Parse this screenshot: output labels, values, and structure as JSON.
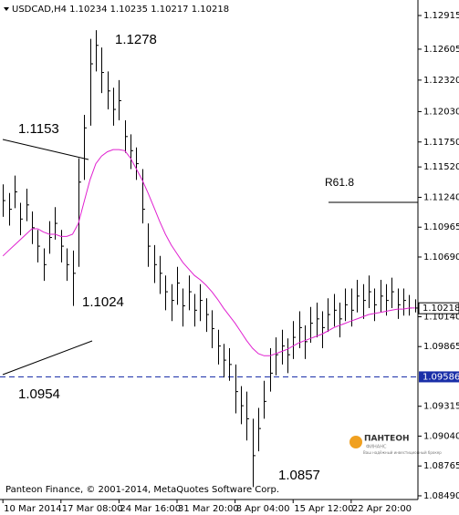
{
  "chart_data": {
    "type": "ohlc",
    "title": "USDCAD,H4  1.10234 1.10235 1.10217 1.10218",
    "series": [
      {
        "name": "USDCAD,H4",
        "color": "#000000",
        "high": [
          1.1136,
          1.1128,
          1.1144,
          1.1119,
          1.1132,
          1.1111,
          1.1094,
          1.1077,
          1.1102,
          1.1115,
          1.1094,
          1.1077,
          1.1075,
          1.116,
          1.12,
          1.127,
          1.1278,
          1.1262,
          1.124,
          1.1225,
          1.1232,
          1.1195,
          1.1182,
          1.117,
          1.115,
          1.11,
          1.108,
          1.107,
          1.1052,
          1.1044,
          1.106,
          1.104,
          1.1052,
          1.1035,
          1.1044,
          1.1031,
          1.102,
          1.1002,
          1.0989,
          1.0985,
          1.097,
          1.095,
          1.0945,
          1.092,
          1.093,
          1.0955,
          1.0985,
          1.0995,
          1.1002,
          1.0994,
          1.101,
          1.1019,
          1.1006,
          1.1023,
          1.1027,
          1.1019,
          1.1031,
          1.1035,
          1.1027,
          1.104,
          1.104,
          1.1048,
          1.1044,
          1.1052,
          1.104,
          1.1048,
          1.1044,
          1.105,
          1.104,
          1.104,
          1.1034,
          1.103
        ],
        "low": [
          1.1106,
          1.1098,
          1.1114,
          1.1089,
          1.1102,
          1.1081,
          1.1064,
          1.1047,
          1.1072,
          1.1085,
          1.1064,
          1.1047,
          1.1024,
          1.106,
          1.114,
          1.119,
          1.124,
          1.122,
          1.1205,
          1.119,
          1.1195,
          1.1165,
          1.115,
          1.114,
          1.11,
          1.106,
          1.1045,
          1.1035,
          1.102,
          1.101,
          1.1025,
          1.1005,
          1.102,
          1.1005,
          1.101,
          1.1,
          1.0985,
          1.097,
          1.0958,
          1.0955,
          1.0925,
          1.0915,
          1.09,
          1.0857,
          1.089,
          1.092,
          1.0945,
          1.096,
          1.097,
          1.0962,
          1.0975,
          1.0985,
          1.0975,
          1.099,
          1.0995,
          1.0985,
          1.1,
          1.1005,
          1.0995,
          1.101,
          1.1005,
          1.1018,
          1.1012,
          1.1022,
          1.101,
          1.1018,
          1.1015,
          1.1022,
          1.1012,
          1.1015,
          1.1015,
          1.1018
        ],
        "close": [
          1.1121,
          1.1113,
          1.1129,
          1.1104,
          1.1117,
          1.1096,
          1.1079,
          1.1062,
          1.1087,
          1.11,
          1.1079,
          1.1062,
          1.1054,
          1.1138,
          1.1188,
          1.1247,
          1.1264,
          1.1239,
          1.1222,
          1.1205,
          1.1213,
          1.118,
          1.1167,
          1.1155,
          1.1113,
          1.1079,
          1.1062,
          1.1054,
          1.1037,
          1.1029,
          1.1045,
          1.1024,
          1.1037,
          1.102,
          1.1029,
          1.1016,
          1.1003,
          1.0987,
          1.0974,
          1.097,
          1.0945,
          1.0932,
          1.092,
          1.0886,
          1.0911,
          1.0936,
          1.0962,
          1.0979,
          1.0987,
          1.0979,
          1.0995,
          1.1004,
          1.0991,
          1.1008,
          1.1012,
          1.1004,
          1.1016,
          1.102,
          1.1012,
          1.1025,
          1.102,
          1.1033,
          1.1029,
          1.1037,
          1.1025,
          1.1033,
          1.1029,
          1.1037,
          1.1025,
          1.1029,
          1.1022,
          1.1022
        ]
      }
    ],
    "ma": {
      "color": "#e020d0",
      "values": [
        1.107,
        1.1075,
        1.108,
        1.1085,
        1.109,
        1.1095,
        1.1095,
        1.1092,
        1.109,
        1.109,
        1.1088,
        1.1088,
        1.109,
        1.11,
        1.112,
        1.114,
        1.1155,
        1.1162,
        1.1166,
        1.1168,
        1.1168,
        1.1167,
        1.116,
        1.115,
        1.114,
        1.1128,
        1.1115,
        1.1102,
        1.109,
        1.108,
        1.1072,
        1.1064,
        1.1058,
        1.1052,
        1.1048,
        1.1043,
        1.1037,
        1.103,
        1.1022,
        1.1015,
        1.1008,
        1.1,
        1.0992,
        1.0985,
        1.098,
        1.0978,
        1.0978,
        1.098,
        1.0982,
        1.0984,
        1.0987,
        1.099,
        1.0992,
        1.0994,
        1.0996,
        1.0998,
        1.1001,
        1.1004,
        1.1006,
        1.1008,
        1.101,
        1.1012,
        1.1014,
        1.1016,
        1.1017,
        1.1018,
        1.1019,
        1.102,
        1.1021,
        1.1021,
        1.1022,
        1.1022
      ]
    },
    "xlim": [
      -0.5,
      71.5
    ],
    "xticks": [
      {
        "value": 0,
        "label": "10 Mar 2014"
      },
      {
        "value": 10,
        "label": "17 Mar 08:00"
      },
      {
        "value": 20,
        "label": "24 Mar 16:00"
      },
      {
        "value": 30,
        "label": "31 Mar 20:00"
      },
      {
        "value": 40,
        "label": "8 Apr 04:00"
      },
      {
        "value": 50,
        "label": "15 Apr 12:00"
      },
      {
        "value": 60,
        "label": "22 Apr 20:00"
      }
    ],
    "ylim": [
      1.08456,
      1.13016
    ],
    "yticks": [
      {
        "value": 1.12915,
        "label": "1.12915"
      },
      {
        "value": 1.12605,
        "label": "1.12605"
      },
      {
        "value": 1.1232,
        "label": "1.12320"
      },
      {
        "value": 1.1203,
        "label": "1.12030"
      },
      {
        "value": 1.1175,
        "label": "1.11750"
      },
      {
        "value": 1.1152,
        "label": "1.11520"
      },
      {
        "value": 1.1124,
        "label": "1.11240"
      },
      {
        "value": 1.10965,
        "label": "1.10965"
      },
      {
        "value": 1.1069,
        "label": "1.10690"
      },
      {
        "value": 1.1014,
        "label": "1.10140"
      },
      {
        "value": 1.09865,
        "label": "1.09865"
      },
      {
        "value": 1.09315,
        "label": "1.09315"
      },
      {
        "value": 1.0904,
        "label": "1.09040"
      },
      {
        "value": 1.08765,
        "label": "1.08765"
      },
      {
        "value": 1.0849,
        "label": "1.08490"
      }
    ],
    "price": {
      "value": 1.10218,
      "label": "1.10218"
    },
    "level": {
      "value": 1.09586,
      "label": "1.09586",
      "color": "#1a2fa8"
    },
    "annotations": [
      {
        "text": "1.1278"
      },
      {
        "text": "1.1153"
      },
      {
        "text": "1.1024"
      },
      {
        "text": "1.0954"
      },
      {
        "text": "1.0857"
      },
      {
        "text": "R61.8"
      }
    ],
    "footer": "Panteon Finance, © 2001-2014, MetaQuotes Software Corp.",
    "logo": {
      "name": "ПАНТЕОН",
      "sub": "ФИНАНС",
      "tagline": "Ваш надёжный инвестиционный брокер"
    }
  }
}
